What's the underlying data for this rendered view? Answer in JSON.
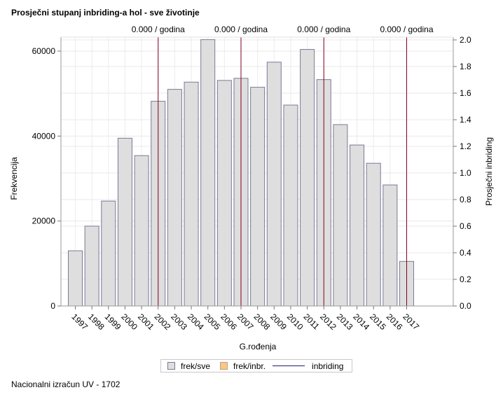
{
  "title": "Prosječni stupanj inbriding-a hol - sve životinje",
  "footnote": "Nacionalni izračun UV - 1702",
  "chart_data": {
    "type": "bar",
    "title": "Prosječni stupanj inbriding-a hol - sve životinje",
    "xlabel": "G.rođenja",
    "ylabel": "Frekvencija",
    "y2label": "Prosječni inbriding",
    "categories": [
      "1997",
      "1998",
      "1999",
      "2000",
      "2001",
      "2002",
      "2003",
      "2004",
      "2005",
      "2006",
      "2007",
      "2008",
      "2009",
      "2010",
      "2011",
      "2012",
      "2013",
      "2014",
      "2015",
      "2016",
      "2017"
    ],
    "series": [
      {
        "name": "frek/sve",
        "type": "bar",
        "axis": "left",
        "color": "#dedede",
        "values": [
          13000,
          18800,
          24700,
          39500,
          35400,
          48200,
          51000,
          52700,
          62700,
          53100,
          53600,
          51500,
          57400,
          47300,
          60400,
          53300,
          42700,
          37900,
          33600,
          28500,
          10500
        ]
      },
      {
        "name": "frek/inbr.",
        "type": "bar",
        "axis": "left",
        "color": "#f6c88c",
        "values": [
          0,
          0,
          0,
          0,
          0,
          0,
          0,
          0,
          0,
          0,
          0,
          0,
          0,
          0,
          0,
          0,
          0,
          0,
          0,
          0,
          0
        ]
      },
      {
        "name": "inbriding",
        "type": "line",
        "axis": "right",
        "color": "#1f1f6b",
        "values": [
          0,
          0,
          0,
          0,
          0,
          0,
          0,
          0,
          0,
          0,
          0,
          0,
          0,
          0,
          0,
          0,
          0,
          0,
          0,
          0,
          0
        ]
      }
    ],
    "y_ticks": [
      0,
      20000,
      40000,
      60000
    ],
    "y_tick_labels": [
      "0",
      "20000",
      "40000",
      "60000"
    ],
    "ylim": [
      0,
      63000
    ],
    "y2_ticks": [
      0,
      0.2,
      0.4,
      0.6,
      0.8,
      1.0,
      1.2,
      1.4,
      1.6,
      1.8,
      2.0
    ],
    "y2_tick_labels": [
      "0.0",
      "0.2",
      "0.4",
      "0.6",
      "0.8",
      "1.0",
      "1.2",
      "1.4",
      "1.6",
      "1.8",
      "2.0"
    ],
    "y2lim": [
      0,
      2.0
    ],
    "reference_lines": [
      {
        "x": "2002",
        "label": "0.000 / godina"
      },
      {
        "x": "2007",
        "label": "0.000 / godina"
      },
      {
        "x": "2012",
        "label": "0.000 / godina"
      },
      {
        "x": "2017",
        "label": "0.000 / godina"
      }
    ],
    "reference_line_color": "#800020",
    "grid": true,
    "legend_position": "bottom"
  }
}
